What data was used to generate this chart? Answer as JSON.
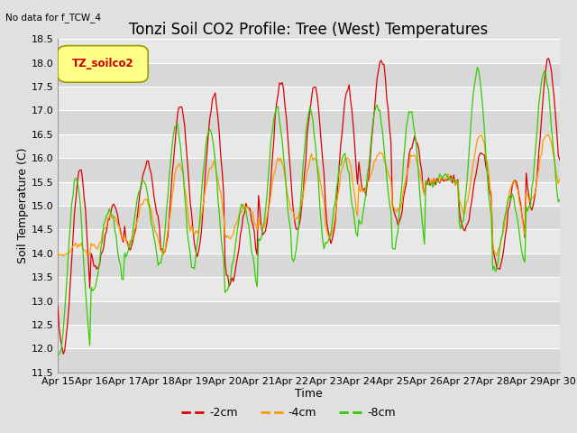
{
  "title": "Tonzi Soil CO2 Profile: Tree (West) Temperatures",
  "subtitle": "No data for f_TCW_4",
  "xlabel": "Time",
  "ylabel": "Soil Temperature (C)",
  "ylim": [
    11.5,
    18.5
  ],
  "xlim": [
    0,
    360
  ],
  "legend_label": "TZ_soilco2",
  "series_labels": [
    "-2cm",
    "-4cm",
    "-8cm"
  ],
  "series_colors": [
    "#dd0000",
    "#ff9900",
    "#33cc00"
  ],
  "tick_labels": [
    "Apr 15",
    "Apr 16",
    "Apr 17",
    "Apr 18",
    "Apr 19",
    "Apr 20",
    "Apr 21",
    "Apr 22",
    "Apr 23",
    "Apr 24",
    "Apr 25",
    "Apr 26",
    "Apr 27",
    "Apr 28",
    "Apr 29",
    "Apr 30"
  ],
  "tick_positions": [
    0,
    24,
    48,
    72,
    96,
    120,
    144,
    168,
    192,
    216,
    240,
    264,
    288,
    312,
    336,
    360
  ],
  "yticks": [
    11.5,
    12.0,
    12.5,
    13.0,
    13.5,
    14.0,
    14.5,
    15.0,
    15.5,
    16.0,
    16.5,
    17.0,
    17.5,
    18.0,
    18.5
  ],
  "fig_bg": "#e0e0e0",
  "plot_bg_light": "#e8e8e8",
  "plot_bg_dark": "#d8d8d8",
  "grid_color": "#ffffff",
  "title_fontsize": 12,
  "axis_fontsize": 8,
  "legend_box_facecolor": "#ffff88",
  "legend_box_edgecolor": "#999900",
  "legend_text_color": "#cc0000"
}
